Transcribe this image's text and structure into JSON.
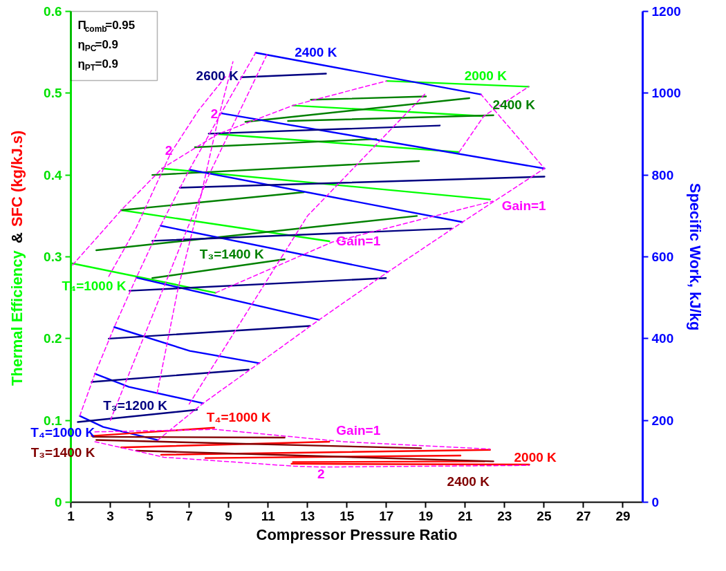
{
  "chart_data": {
    "type": "line",
    "xlabel": "Compressor Pressure Ratio",
    "ylabel": "Thermal Efficiency & SFC (kg/kJ.s)",
    "y2label": "Specific Work, kJ/kg",
    "xlim": [
      1,
      30
    ],
    "xticks": [
      1,
      3,
      5,
      7,
      9,
      11,
      13,
      15,
      17,
      19,
      21,
      23,
      25,
      27,
      29
    ],
    "ylim": [
      0,
      0.6
    ],
    "yticks": [
      0,
      0.1,
      0.2,
      0.3,
      0.4,
      0.5,
      0.6
    ],
    "y2lim": [
      0,
      1200
    ],
    "y2ticks": [
      0,
      200,
      400,
      600,
      800,
      1000,
      1200
    ],
    "series": [
      {
        "color": "#00ff00",
        "x": [
          1.07,
          8.34
        ],
        "values": [
          0.292,
          0.256
        ]
      },
      {
        "color": "#00ff00",
        "x": [
          3.55,
          14.11
        ],
        "values": [
          0.357,
          0.319
        ]
      },
      {
        "color": "#00ff00",
        "x": [
          5.62,
          22.26
        ],
        "values": [
          0.408,
          0.37
        ]
      },
      {
        "color": "#00ff00",
        "x": [
          8.45,
          20.69
        ],
        "values": [
          0.45,
          0.428
        ]
      },
      {
        "color": "#00ff00",
        "x": [
          12.26,
          21.94
        ],
        "values": [
          0.485,
          0.472
        ]
      },
      {
        "color": "#00ff00",
        "x": [
          17.01,
          24.22
        ],
        "values": [
          0.515,
          0.508
        ]
      },
      {
        "color": "#008000",
        "x": [
          5.13,
          11.84
        ],
        "values": [
          0.274,
          0.297
        ]
      },
      {
        "color": "#008000",
        "x": [
          2.29,
          18.55
        ],
        "values": [
          0.308,
          0.35
        ]
      },
      {
        "color": "#008000",
        "x": [
          3.55,
          12.82
        ],
        "values": [
          0.357,
          0.379
        ]
      },
      {
        "color": "#008000",
        "x": [
          5.13,
          18.66
        ],
        "values": [
          0.4,
          0.417
        ]
      },
      {
        "color": "#008000",
        "x": [
          7.29,
          16.49
        ],
        "values": [
          0.434,
          0.444
        ]
      },
      {
        "color": "#008000",
        "x": [
          9.85,
          21.21
        ],
        "values": [
          0.465,
          0.494
        ]
      },
      {
        "color": "#008000",
        "x": [
          12.01,
          22.43
        ],
        "values": [
          0.466,
          0.473
        ]
      },
      {
        "color": "#008000",
        "x": [
          13.17,
          19.01
        ],
        "values": [
          0.492,
          0.496
        ]
      },
      {
        "color": "#0000ff",
        "axis": "y2",
        "x": [
          1.45,
          2.64,
          5.41
        ],
        "values": [
          211,
          184,
          152
        ]
      },
      {
        "color": "#0000ff",
        "axis": "y2",
        "x": [
          2.22,
          3.94,
          7.71
        ],
        "values": [
          314,
          282,
          242
        ]
      },
      {
        "color": "#0000ff",
        "axis": "y2",
        "x": [
          3.2,
          7.03,
          10.55
        ],
        "values": [
          428,
          370,
          340
        ]
      },
      {
        "color": "#0000ff",
        "axis": "y2",
        "x": [
          4.32,
          13.59
        ],
        "values": [
          549,
          446
        ]
      },
      {
        "color": "#0000ff",
        "axis": "y2",
        "x": [
          5.55,
          17.08
        ],
        "values": [
          676,
          563
        ]
      },
      {
        "color": "#0000ff",
        "axis": "y2",
        "x": [
          7.01,
          20.86
        ],
        "values": [
          813,
          685
        ]
      },
      {
        "color": "#0000ff",
        "axis": "y2",
        "x": [
          8.62,
          25.02
        ],
        "values": [
          951,
          816
        ]
      },
      {
        "color": "#0000ff",
        "axis": "y2",
        "x": [
          10.37,
          21.8
        ],
        "values": [
          1099,
          997
        ]
      },
      {
        "color": "#000080",
        "axis": "y2",
        "x": [
          1.35,
          7.4
        ],
        "values": [
          196,
          226
        ]
      },
      {
        "color": "#000080",
        "axis": "y2",
        "x": [
          2.05,
          10.02
        ],
        "values": [
          294,
          324
        ]
      },
      {
        "color": "#000080",
        "axis": "y2",
        "x": [
          2.92,
          13.13
        ],
        "values": [
          400,
          431
        ]
      },
      {
        "color": "#000080",
        "axis": "y2",
        "x": [
          3.97,
          16.98
        ],
        "values": [
          517,
          548
        ]
      },
      {
        "color": "#000080",
        "axis": "y2",
        "x": [
          5.13,
          20.3
        ],
        "values": [
          639,
          669
        ]
      },
      {
        "color": "#000080",
        "axis": "y2",
        "x": [
          6.52,
          25.02
        ],
        "values": [
          769,
          796
        ]
      },
      {
        "color": "#000080",
        "axis": "y2",
        "x": [
          7.99,
          19.71
        ],
        "values": [
          901,
          921
        ]
      },
      {
        "color": "#000080",
        "axis": "y2",
        "x": [
          9.64,
          13.94
        ],
        "values": [
          1039,
          1048
        ]
      },
      {
        "color": "#ff0000",
        "x": [
          2.05,
          8.27
        ],
        "values": [
          0.081,
          0.091
        ]
      },
      {
        "color": "#ff0000",
        "x": [
          3.55,
          14.11
        ],
        "values": [
          0.067,
          0.074
        ]
      },
      {
        "color": "#ff0000",
        "x": [
          5.58,
          22.26
        ],
        "values": [
          0.058,
          0.064
        ]
      },
      {
        "color": "#ff0000",
        "x": [
          7.82,
          20.76
        ],
        "values": [
          0.054,
          0.057
        ]
      },
      {
        "color": "#ff0000",
        "x": [
          12.19,
          24.25
        ],
        "values": [
          0.047,
          0.046
        ]
      },
      {
        "color": "#ff0000",
        "x": [
          12.26,
          21.98
        ],
        "values": [
          0.049,
          0.05
        ]
      },
      {
        "color": "#800000",
        "x": [
          2.12,
          11.84
        ],
        "values": [
          0.08,
          0.079
        ]
      },
      {
        "color": "#800000",
        "x": [
          2.29,
          18.76
        ],
        "values": [
          0.076,
          0.066
        ]
      },
      {
        "color": "#800000",
        "x": [
          4.32,
          22.43
        ],
        "values": [
          0.063,
          0.05
        ]
      },
      {
        "color": "#ff00ff",
        "line_style": "dashed",
        "axis": "y2",
        "x": [
          5.41,
          7.71,
          10.55,
          13.59,
          17.08,
          20.86,
          25.02,
          21.8
        ],
        "values": [
          152,
          242,
          340,
          446,
          563,
          685,
          816,
          997
        ]
      },
      {
        "color": "#ff00ff",
        "line_style": "dashed",
        "axis": "y2",
        "x": [
          1.45,
          2.22,
          3.2,
          4.32,
          5.55,
          7.01,
          8.62,
          10.37
        ],
        "values": [
          211,
          314,
          428,
          549,
          676,
          813,
          951,
          1099
        ]
      },
      {
        "color": "#ff00ff",
        "line_style": "dashed",
        "axis": "y2",
        "x": [
          5.37,
          6.42,
          7.47,
          8.45,
          9.22
        ],
        "values": [
          265,
          519,
          722,
          933,
          1077
        ]
      },
      {
        "color": "#ff00ff",
        "line_style": "dashed",
        "x": [
          1.09,
          3.55,
          5.62,
          8.45,
          12.26,
          17.01
        ],
        "values": [
          0.29,
          0.357,
          0.408,
          0.45,
          0.485,
          0.515
        ]
      },
      {
        "color": "#ff00ff",
        "line_style": "dashed",
        "x": [
          2.92,
          4.32,
          6.07,
          7.47,
          8.87
        ],
        "values": [
          0.276,
          0.336,
          0.427,
          0.479,
          0.521
        ]
      },
      {
        "color": "#ff00ff",
        "line_style": "dashed",
        "x": [
          8.34,
          14.25,
          22.4
        ],
        "values": [
          0.256,
          0.318,
          0.368
        ]
      },
      {
        "color": "#ff00ff",
        "line_style": "dashed",
        "x": [
          20.69,
          21.94,
          24.22
        ],
        "values": [
          0.428,
          0.472,
          0.508
        ]
      },
      {
        "color": "#ff00ff",
        "line_style": "dashed",
        "x": [
          3.0,
          8.0,
          11.0
        ],
        "values": [
          0.1,
          0.4,
          0.55
        ]
      },
      {
        "color": "#ff00ff",
        "line_style": "dashed",
        "x": [
          7.0,
          13.0,
          19.0
        ],
        "values": [
          0.12,
          0.35,
          0.5
        ]
      },
      {
        "color": "#ff00ff",
        "line_style": "dashed",
        "x": [
          2.22,
          8.34,
          14.81,
          22.26
        ],
        "values": [
          0.086,
          0.089,
          0.074,
          0.065
        ]
      },
      {
        "color": "#ff00ff",
        "line_style": "dashed",
        "x": [
          2.22,
          5.72,
          12.36,
          13.76,
          24.25
        ],
        "values": [
          0.074,
          0.055,
          0.044,
          0.043,
          0.045
        ]
      }
    ],
    "annotations": [
      {
        "text": "2400 K",
        "x": 12.35,
        "y": 0.5405
      },
      {
        "text": "2600 K",
        "x": 9.64,
        "y": 0.5195
      },
      {
        "text": "2000 K",
        "x": 24.22,
        "y": 0.508
      },
      {
        "text": "2400 K",
        "x": 22.43,
        "y": 0.473
      },
      {
        "text": "2",
        "x": 8.45,
        "y": 0.4665
      },
      {
        "text": "2",
        "x": 6.07,
        "y": 0.427
      },
      {
        "text": "Gain=1",
        "x": 14.25,
        "y": 0.318
      },
      {
        "text": "Gain=1",
        "x": 22.4,
        "y": 0.368
      },
      {
        "text": "T₃=1400 K",
        "x": 11.84,
        "y": 0.297
      },
      {
        "text": "T₄=1000 K",
        "x": 1.07,
        "y": 0.292
      },
      {
        "text": "T₃=1200 K",
        "x": 7.4,
        "y": 0.113
      },
      {
        "text": "T₄=1000 K",
        "x": 1.45,
        "y": 0.1055
      },
      {
        "text": "T₃=1400 K",
        "x": 2.12,
        "y": 0.08
      },
      {
        "text": "T₄=1000 K",
        "x": 8.27,
        "y": 0.091
      },
      {
        "text": "Gain=1",
        "x": 14.81,
        "y": 0.074
      },
      {
        "text": "2000 K",
        "x": 24.25,
        "y": 0.046
      },
      {
        "text": "2400 K",
        "x": 22.43,
        "y": 0.05
      },
      {
        "text": "2",
        "x": 13.76,
        "y": 0.043
      },
      "Π$_{comb}$=0.95",
      "η$_{PC}$=0.9",
      "η$_{PT}$=0.9"
    ]
  }
}
